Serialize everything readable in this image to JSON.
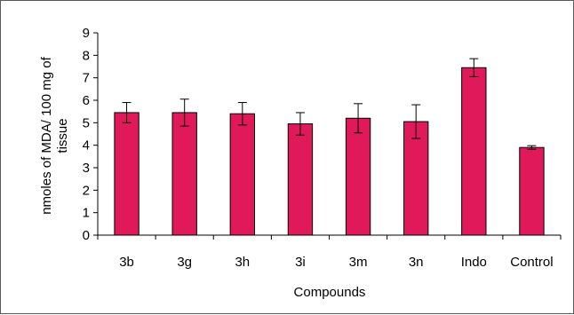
{
  "chart_data": {
    "type": "bar",
    "categories": [
      "3b",
      "3g",
      "3h",
      "3i",
      "3m",
      "3n",
      "Indo",
      "Control"
    ],
    "series": [
      {
        "values": [
          5.45,
          5.45,
          5.4,
          4.95,
          5.2,
          5.05,
          7.45,
          3.9
        ],
        "errors": [
          0.45,
          0.6,
          0.5,
          0.5,
          0.65,
          0.75,
          0.4,
          0.08
        ],
        "color": "#e0195a"
      }
    ],
    "xlabel": "Compounds",
    "ylabel_lines": [
      "nmoles of MDA/ 100 mg of",
      "tissue"
    ],
    "ylim": [
      0,
      9
    ],
    "yticks": [
      "0",
      "1",
      "2",
      "3",
      "4",
      "5",
      "6",
      "7",
      "8",
      "9"
    ],
    "grid": false,
    "legend": false
  }
}
